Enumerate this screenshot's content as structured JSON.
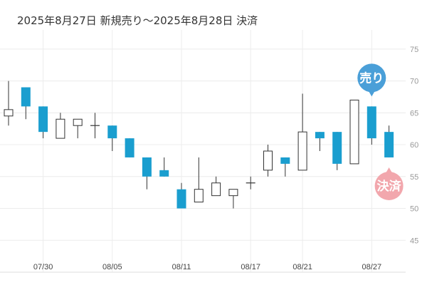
{
  "title": "2025年8月27日 新規売り～2025年8月28日 決済",
  "colors": {
    "up": "#ffffff",
    "up_border": "#333333",
    "down": "#1a9ecf",
    "grid": "#ececec",
    "sell_marker": "#4a9fd8",
    "close_marker": "#f2a7ad"
  },
  "chart_data": {
    "type": "candlestick",
    "title": "2025年8月27日 新規売り～2025年8月28日 決済",
    "ylim": [
      40,
      78
    ],
    "yticks": [
      45,
      50,
      55,
      60,
      65,
      70,
      75
    ],
    "grid": true,
    "x_tick_labels": [
      {
        "index": 2,
        "label": "07/30"
      },
      {
        "index": 6,
        "label": "08/05"
      },
      {
        "index": 10,
        "label": "08/11"
      },
      {
        "index": 14,
        "label": "08/17"
      },
      {
        "index": 17,
        "label": "08/21"
      },
      {
        "index": 21,
        "label": "08/27"
      }
    ],
    "candles": [
      {
        "o": 64.5,
        "h": 70,
        "l": 63,
        "c": 65.5
      },
      {
        "o": 69,
        "h": 69,
        "l": 64,
        "c": 66
      },
      {
        "o": 66,
        "h": 66,
        "l": 61,
        "c": 62
      },
      {
        "o": 61,
        "h": 65,
        "l": 61,
        "c": 64
      },
      {
        "o": 63,
        "h": 64,
        "l": 61,
        "c": 64
      },
      {
        "o": 63,
        "h": 65,
        "l": 61,
        "c": 63
      },
      {
        "o": 63,
        "h": 63,
        "l": 59,
        "c": 61
      },
      {
        "o": 61,
        "h": 61,
        "l": 58,
        "c": 58
      },
      {
        "o": 58,
        "h": 58,
        "l": 53,
        "c": 55
      },
      {
        "o": 56,
        "h": 58,
        "l": 55,
        "c": 55
      },
      {
        "o": 53,
        "h": 54,
        "l": 50,
        "c": 50
      },
      {
        "o": 51,
        "h": 58,
        "l": 51,
        "c": 53
      },
      {
        "o": 52,
        "h": 55,
        "l": 52,
        "c": 54
      },
      {
        "o": 52,
        "h": 53,
        "l": 50,
        "c": 53
      },
      {
        "o": 54,
        "h": 55,
        "l": 53,
        "c": 54
      },
      {
        "o": 56,
        "h": 60,
        "l": 55,
        "c": 59
      },
      {
        "o": 58,
        "h": 58,
        "l": 55,
        "c": 57
      },
      {
        "o": 56,
        "h": 68,
        "l": 56,
        "c": 62
      },
      {
        "o": 62,
        "h": 62,
        "l": 59,
        "c": 61
      },
      {
        "o": 62,
        "h": 62,
        "l": 56,
        "c": 57
      },
      {
        "o": 57,
        "h": 67,
        "l": 57,
        "c": 67
      },
      {
        "o": 66,
        "h": 66,
        "l": 60,
        "c": 61
      },
      {
        "o": 62,
        "h": 63,
        "l": 58,
        "c": 58
      }
    ],
    "markers": [
      {
        "label": "売り",
        "index": 21,
        "type": "sell"
      },
      {
        "label": "決済",
        "index": 22,
        "type": "close"
      }
    ]
  }
}
